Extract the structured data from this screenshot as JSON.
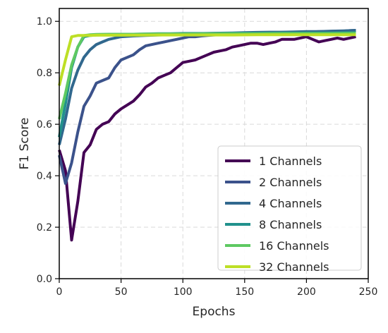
{
  "chart_data": {
    "type": "line",
    "title": "",
    "xlabel": "Epochs",
    "ylabel": "F1 Score",
    "xlim": [
      0,
      250
    ],
    "ylim": [
      0.0,
      1.05
    ],
    "xticks": [
      "0",
      "50",
      "100",
      "150",
      "200",
      "250"
    ],
    "yticks": [
      "0.0",
      "0.2",
      "0.4",
      "0.6",
      "0.8",
      "1.0"
    ],
    "grid": true,
    "legend_position": "lower-right",
    "series": [
      {
        "name": "1 Channels",
        "color": "#440154",
        "x": [
          0,
          5,
          10,
          15,
          20,
          25,
          30,
          35,
          40,
          45,
          50,
          55,
          60,
          65,
          70,
          75,
          80,
          85,
          90,
          95,
          100,
          105,
          110,
          115,
          120,
          125,
          130,
          135,
          140,
          145,
          150,
          155,
          160,
          165,
          170,
          175,
          180,
          185,
          190,
          195,
          200,
          205,
          210,
          215,
          220,
          225,
          230,
          235,
          240
        ],
        "y": [
          0.5,
          0.42,
          0.15,
          0.3,
          0.49,
          0.52,
          0.58,
          0.6,
          0.61,
          0.64,
          0.66,
          0.675,
          0.69,
          0.715,
          0.745,
          0.76,
          0.78,
          0.79,
          0.8,
          0.82,
          0.84,
          0.845,
          0.85,
          0.86,
          0.87,
          0.88,
          0.885,
          0.89,
          0.9,
          0.905,
          0.91,
          0.915,
          0.915,
          0.91,
          0.915,
          0.92,
          0.93,
          0.93,
          0.93,
          0.935,
          0.94,
          0.93,
          0.92,
          0.925,
          0.93,
          0.935,
          0.93,
          0.935,
          0.94
        ]
      },
      {
        "name": "2 Channels",
        "color": "#3b528b",
        "x": [
          0,
          5,
          10,
          15,
          20,
          25,
          30,
          35,
          40,
          45,
          50,
          55,
          60,
          65,
          70,
          75,
          80,
          85,
          90,
          95,
          100,
          105,
          110,
          115,
          120,
          125,
          130,
          135,
          140,
          145,
          150,
          155,
          160,
          165,
          170,
          175,
          180,
          185,
          190,
          195,
          200,
          205,
          210,
          215,
          220,
          225,
          230,
          235,
          240
        ],
        "y": [
          0.48,
          0.37,
          0.45,
          0.57,
          0.67,
          0.71,
          0.76,
          0.77,
          0.78,
          0.82,
          0.85,
          0.86,
          0.87,
          0.89,
          0.905,
          0.91,
          0.915,
          0.92,
          0.925,
          0.93,
          0.935,
          0.94,
          0.94,
          0.943,
          0.945,
          0.947,
          0.948,
          0.95,
          0.95,
          0.952,
          0.953,
          0.954,
          0.955,
          0.955,
          0.955,
          0.956,
          0.957,
          0.957,
          0.958,
          0.958,
          0.958,
          0.959,
          0.96,
          0.96,
          0.961,
          0.962,
          0.962,
          0.964,
          0.965
        ]
      },
      {
        "name": "4 Channels",
        "color": "#31688e",
        "x": [
          0,
          5,
          10,
          15,
          20,
          25,
          30,
          35,
          40,
          45,
          50,
          60,
          70,
          80,
          90,
          100,
          110,
          120,
          130,
          140,
          150,
          160,
          170,
          180,
          190,
          200,
          210,
          220,
          230,
          240
        ],
        "y": [
          0.52,
          0.62,
          0.74,
          0.81,
          0.86,
          0.89,
          0.91,
          0.92,
          0.93,
          0.935,
          0.94,
          0.943,
          0.945,
          0.947,
          0.948,
          0.95,
          0.952,
          0.953,
          0.954,
          0.955,
          0.956,
          0.957,
          0.958,
          0.958,
          0.959,
          0.96,
          0.96,
          0.962,
          0.963,
          0.965
        ]
      },
      {
        "name": "8 Channels",
        "color": "#21918c",
        "x": [
          0,
          5,
          10,
          15,
          20,
          25,
          30,
          40,
          50,
          60,
          70,
          80,
          90,
          100,
          120,
          140,
          160,
          180,
          200,
          220,
          240
        ],
        "y": [
          0.55,
          0.68,
          0.82,
          0.9,
          0.94,
          0.945,
          0.947,
          0.948,
          0.95,
          0.95,
          0.951,
          0.952,
          0.952,
          0.953,
          0.953,
          0.954,
          0.954,
          0.955,
          0.955,
          0.955,
          0.956
        ]
      },
      {
        "name": "16 Channels",
        "color": "#5ec962",
        "x": [
          0,
          5,
          10,
          15,
          20,
          25,
          30,
          40,
          50,
          60,
          80,
          100,
          120,
          140,
          160,
          180,
          200,
          220,
          240
        ],
        "y": [
          0.62,
          0.72,
          0.83,
          0.9,
          0.945,
          0.948,
          0.949,
          0.95,
          0.95,
          0.95,
          0.951,
          0.951,
          0.952,
          0.952,
          0.952,
          0.953,
          0.953,
          0.953,
          0.954
        ]
      },
      {
        "name": "32 Channels",
        "color": "#bddf26",
        "x": [
          0,
          5,
          10,
          15,
          20,
          25,
          30,
          40,
          50,
          60,
          80,
          100,
          120,
          140,
          160,
          180,
          200,
          220,
          240
        ],
        "y": [
          0.75,
          0.85,
          0.94,
          0.945,
          0.945,
          0.945,
          0.946,
          0.946,
          0.946,
          0.946,
          0.947,
          0.947,
          0.947,
          0.947,
          0.948,
          0.948,
          0.948,
          0.948,
          0.948
        ]
      }
    ]
  }
}
